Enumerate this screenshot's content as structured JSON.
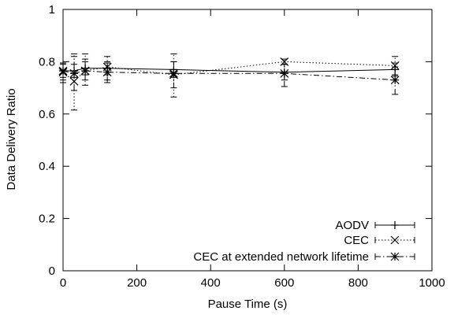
{
  "chart_data": {
    "type": "line",
    "title": "",
    "xlabel": "Pause Time (s)",
    "ylabel": "Data Delivery Ratio",
    "xlim": [
      0,
      1000
    ],
    "ylim": [
      0,
      1
    ],
    "xticks": [
      0,
      200,
      400,
      600,
      800,
      1000
    ],
    "xtick_labels": [
      "0",
      "200",
      "400",
      "600",
      "800",
      "1000"
    ],
    "yticks": [
      0,
      0.2,
      0.4,
      0.6,
      0.8,
      1
    ],
    "ytick_labels": [
      "0",
      "0.2",
      "0.4",
      "0.6",
      "0.8",
      "1"
    ],
    "grid": false,
    "legend_position": "bottom-right",
    "series": [
      {
        "name": "AODV",
        "line_style": "solid",
        "marker": "plus",
        "error_bar_dash": "dashed",
        "x": [
          0,
          30,
          60,
          120,
          300,
          600,
          900
        ],
        "y": [
          0.765,
          0.765,
          0.775,
          0.775,
          0.77,
          0.76,
          0.77
        ],
        "err_low": [
          0.74,
          0.74,
          0.75,
          0.75,
          0.74,
          0.73,
          0.745
        ],
        "err_high": [
          0.79,
          0.79,
          0.8,
          0.8,
          0.8,
          0.79,
          0.795
        ]
      },
      {
        "name": "CEC",
        "line_style": "dotted",
        "marker": "x",
        "error_bar_dash": "dotted",
        "x": [
          0,
          30,
          60,
          120,
          300,
          600,
          900
        ],
        "y": [
          0.76,
          0.725,
          0.765,
          0.78,
          0.75,
          0.8,
          0.785
        ],
        "err_low": [
          0.72,
          0.615,
          0.71,
          0.73,
          0.665,
          0.79,
          0.75
        ],
        "err_high": [
          0.795,
          0.83,
          0.83,
          0.82,
          0.83,
          0.81,
          0.82
        ]
      },
      {
        "name": "CEC at extended network lifetime",
        "line_style": "dashdot",
        "marker": "star",
        "error_bar_dash": "dashdot",
        "x": [
          0,
          30,
          60,
          120,
          300,
          600,
          900
        ],
        "y": [
          0.765,
          0.755,
          0.765,
          0.76,
          0.755,
          0.755,
          0.73
        ],
        "err_low": [
          0.73,
          0.69,
          0.73,
          0.72,
          0.7,
          0.705,
          0.675
        ],
        "err_high": [
          0.795,
          0.82,
          0.81,
          0.795,
          0.8,
          0.79,
          0.78
        ]
      }
    ]
  }
}
